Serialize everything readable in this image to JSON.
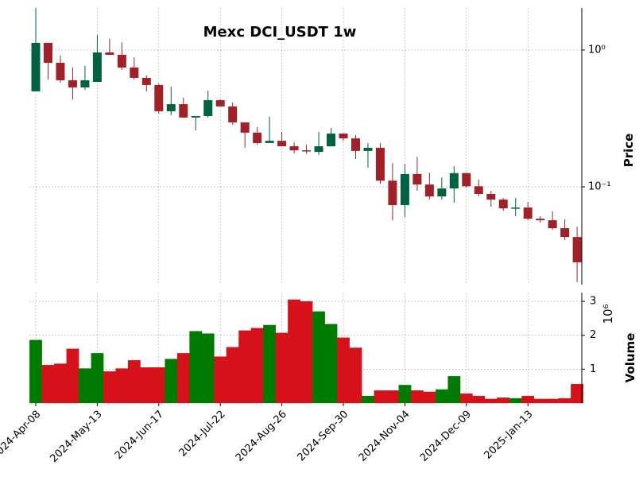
{
  "chart_data": [
    {
      "type": "candlestick",
      "title": "Mexc DCI_USDT 1w",
      "ylabel": "Price",
      "log_scale": true,
      "grid": true,
      "up_color": "#006340",
      "down_color": "#a02128",
      "ylim": [
        0.0193,
        2.03
      ],
      "yticks": [
        {
          "value": 1,
          "label": "10⁰"
        },
        {
          "value": 0.1,
          "label": "10⁻¹"
        }
      ],
      "open": [
        0.499,
        1.128,
        0.807,
        0.601,
        0.533,
        0.585,
        0.961,
        0.923,
        0.745,
        0.626,
        0.555,
        0.357,
        0.402,
        0.321,
        0.329,
        0.43,
        0.387,
        0.296,
        0.249,
        0.209,
        0.217,
        0.198,
        0.185,
        0.18,
        0.198,
        0.245,
        0.226,
        0.183,
        0.193,
        0.111,
        0.0735,
        0.124,
        0.104,
        0.0851,
        0.0973,
        0.126,
        0.101,
        0.0887,
        0.0807,
        0.0697,
        0.0706,
        0.0585,
        0.057,
        0.0499,
        0.043
      ],
      "high": [
        2.03,
        1.128,
        0.911,
        0.745,
        0.765,
        1.29,
        1.21,
        1.14,
        0.886,
        0.652,
        0.57,
        0.54,
        0.448,
        0.329,
        0.505,
        0.436,
        0.413,
        0.296,
        0.273,
        0.325,
        0.252,
        0.212,
        0.203,
        0.252,
        0.269,
        0.245,
        0.239,
        0.209,
        0.209,
        0.149,
        0.147,
        0.166,
        0.127,
        0.117,
        0.142,
        0.127,
        0.113,
        0.0935,
        0.0829,
        0.0829,
        0.0776,
        0.061,
        0.0661,
        0.0578,
        0.0512
      ],
      "low": [
        0.499,
        0.609,
        0.578,
        0.436,
        0.512,
        0.585,
        0.923,
        0.716,
        0.609,
        0.499,
        0.343,
        0.334,
        0.321,
        0.259,
        0.321,
        0.387,
        0.284,
        0.193,
        0.203,
        0.209,
        0.198,
        0.175,
        0.175,
        0.171,
        0.198,
        0.217,
        0.16,
        0.138,
        0.105,
        0.057,
        0.0601,
        0.0935,
        0.0807,
        0.0807,
        0.0766,
        0.0986,
        0.0851,
        0.0716,
        0.0669,
        0.061,
        0.057,
        0.0547,
        0.0485,
        0.0408,
        0.0201
      ],
      "close": [
        1.128,
        0.807,
        0.601,
        0.533,
        0.601,
        0.961,
        0.923,
        0.745,
        0.626,
        0.555,
        0.357,
        0.402,
        0.321,
        0.329,
        0.43,
        0.387,
        0.296,
        0.249,
        0.209,
        0.217,
        0.198,
        0.185,
        0.183,
        0.198,
        0.245,
        0.226,
        0.183,
        0.193,
        0.111,
        0.0735,
        0.124,
        0.104,
        0.0851,
        0.0973,
        0.126,
        0.101,
        0.0887,
        0.0807,
        0.0697,
        0.0706,
        0.0585,
        0.057,
        0.0499,
        0.043,
        0.0281
      ]
    },
    {
      "type": "bar",
      "ylabel": "Volume",
      "scale_label": "10⁶",
      "grid": true,
      "up_color": "#007a00",
      "down_color": "#d5121a",
      "ylim": [
        0,
        3.26
      ],
      "yticks": [
        1,
        2,
        3
      ],
      "categories": [
        "2024-Apr-08",
        null,
        null,
        null,
        null,
        "2024-May-13",
        null,
        null,
        null,
        null,
        "2024-Jun-17",
        null,
        null,
        null,
        null,
        "2024-Jul-22",
        null,
        null,
        null,
        null,
        "2024-Aug-26",
        null,
        null,
        null,
        null,
        "2024-Sep-30",
        null,
        null,
        null,
        null,
        "2024-Nov-04",
        null,
        null,
        null,
        null,
        "2024-Dec-09",
        null,
        null,
        null,
        null,
        "2025-Jan-13",
        null,
        null,
        null,
        null
      ],
      "values": [
        1.86,
        1.12,
        1.16,
        1.6,
        1.02,
        1.47,
        0.93,
        1.02,
        1.26,
        1.05,
        1.05,
        1.3,
        1.47,
        2.12,
        2.05,
        1.37,
        1.65,
        2.14,
        2.21,
        2.3,
        2.07,
        3.05,
        3.0,
        2.7,
        2.33,
        1.93,
        1.63,
        0.21,
        0.37,
        0.37,
        0.53,
        0.37,
        0.33,
        0.4,
        0.79,
        0.28,
        0.21,
        0.12,
        0.16,
        0.14,
        0.21,
        0.12,
        0.12,
        0.14,
        0.56
      ]
    }
  ]
}
